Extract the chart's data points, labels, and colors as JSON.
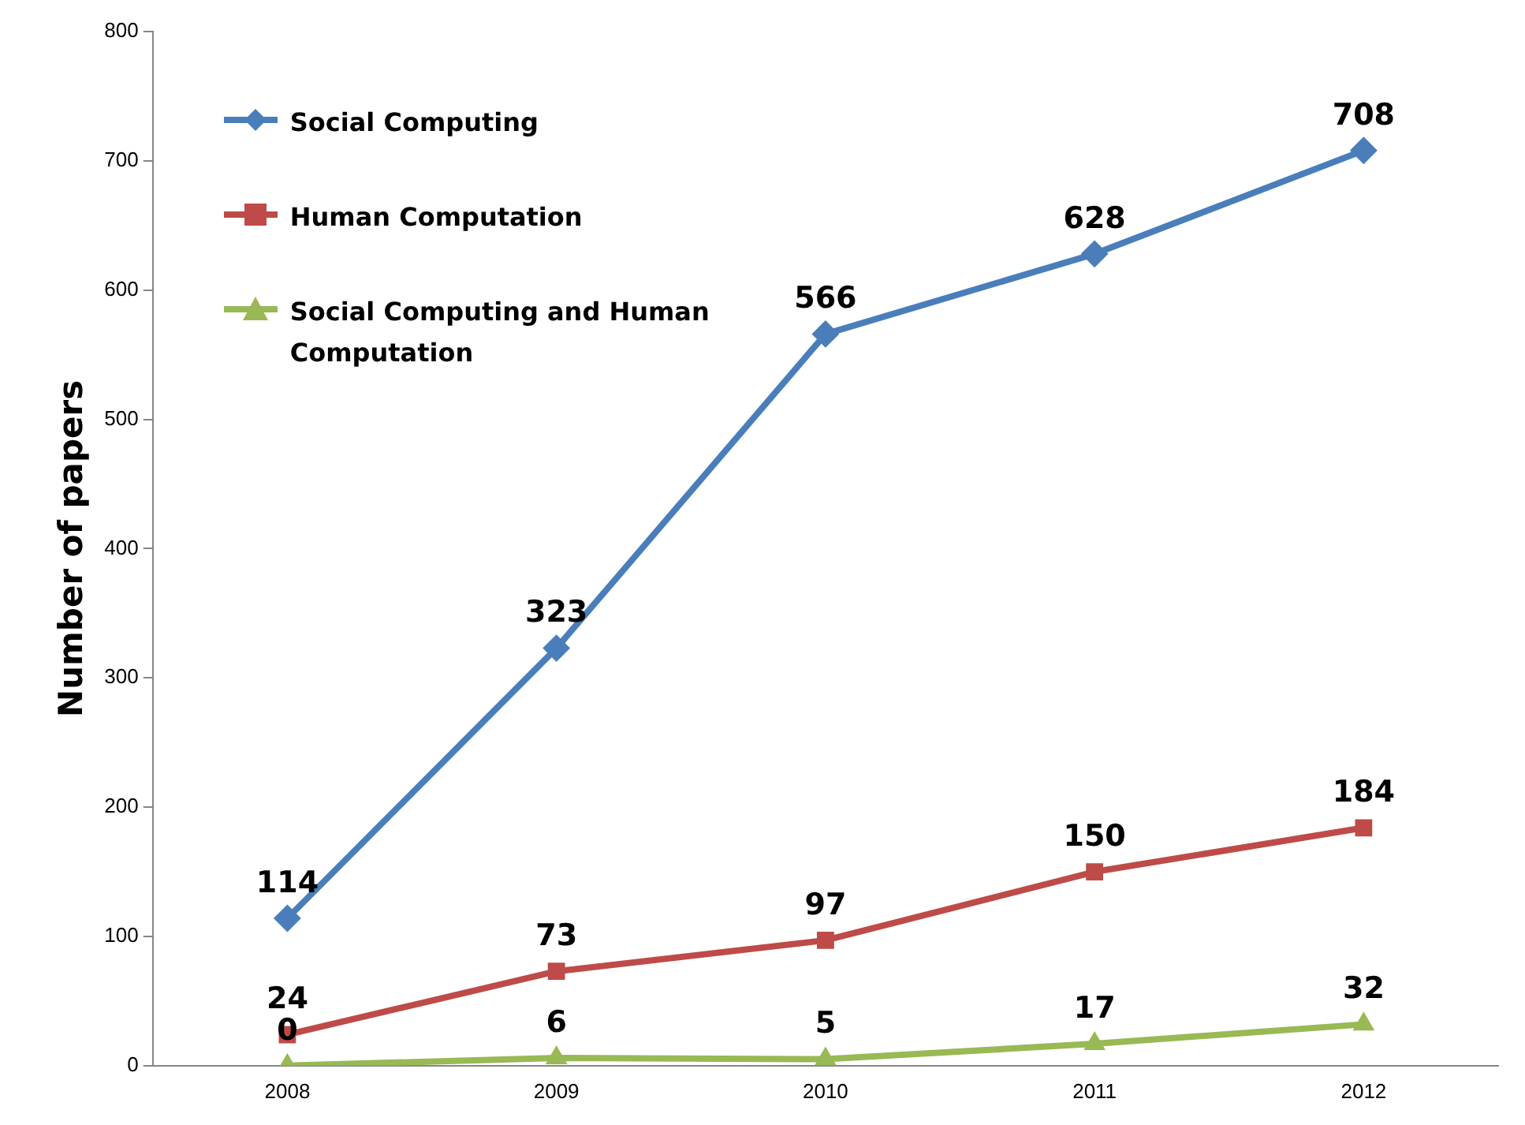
{
  "chart_data": {
    "type": "line",
    "ylabel": "Number of papers",
    "categories": [
      "2008",
      "2009",
      "2010",
      "2011",
      "2012"
    ],
    "series": [
      {
        "name": "Social Computing",
        "color": "#4a7ebb",
        "marker": "diamond",
        "values": [
          114,
          323,
          566,
          628,
          708
        ]
      },
      {
        "name": "Human Computation",
        "color": "#be4b48",
        "marker": "square",
        "values": [
          24,
          73,
          97,
          150,
          184
        ]
      },
      {
        "name": "Social Computing and Human Computation",
        "color": "#98b954",
        "marker": "triangle",
        "values": [
          0,
          6,
          5,
          17,
          32
        ]
      }
    ],
    "ylim": [
      0,
      800
    ],
    "yticks": [
      0,
      100,
      200,
      300,
      400,
      500,
      600,
      700,
      800
    ],
    "grid": false,
    "legend": "top left",
    "data_labels": true,
    "line_style": "solid"
  }
}
